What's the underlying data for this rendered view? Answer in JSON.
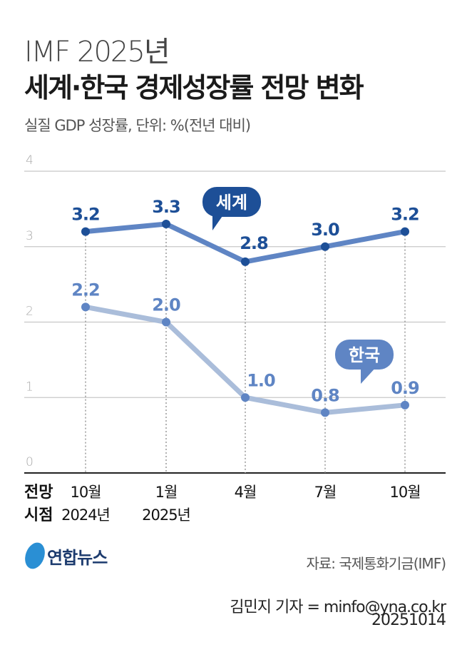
{
  "title_line1": "IMF 2025년",
  "title_line2": "세계·한국 경제성장률 전망 변화",
  "subtitle": "실질 GDP 성장률, 단위: %(전년 대비)",
  "source": "자료: 국제통화기금(IMF)",
  "credit": "김민지 기자 = minfo@yna.co.kr",
  "date": "20251014",
  "logo": "연합뉴스",
  "chart_data": {
    "type": "line",
    "ylim": [
      0,
      4
    ],
    "yticks": [
      "0",
      "1",
      "2",
      "3",
      "4"
    ],
    "x_axis_label": [
      "전망",
      "시점"
    ],
    "categories": [
      [
        "10월",
        "2024년"
      ],
      [
        "1월",
        "2025년"
      ],
      [
        "4월",
        ""
      ],
      [
        "7월",
        ""
      ],
      [
        "10월",
        ""
      ]
    ],
    "grid": true,
    "series": [
      {
        "name": "세계",
        "values": [
          3.2,
          3.3,
          2.8,
          3.0,
          3.2
        ],
        "labels": [
          "3.2",
          "3.3",
          "2.8",
          "3.0",
          "3.2"
        ],
        "color": "#5f85c4",
        "point_color": "#1d4f97",
        "label_color": "#1d4f97"
      },
      {
        "name": "한국",
        "values": [
          2.2,
          2.0,
          1.0,
          0.8,
          0.9
        ],
        "labels": [
          "2.2",
          "2.0",
          "1.0",
          "0.8",
          "0.9"
        ],
        "color": "#aabdda",
        "point_color": "#5f85c4",
        "label_color": "#5f85c4"
      }
    ],
    "callouts": [
      {
        "text": "세계",
        "color": "#1d4f97"
      },
      {
        "text": "한국",
        "color": "#5f85c4"
      }
    ]
  }
}
